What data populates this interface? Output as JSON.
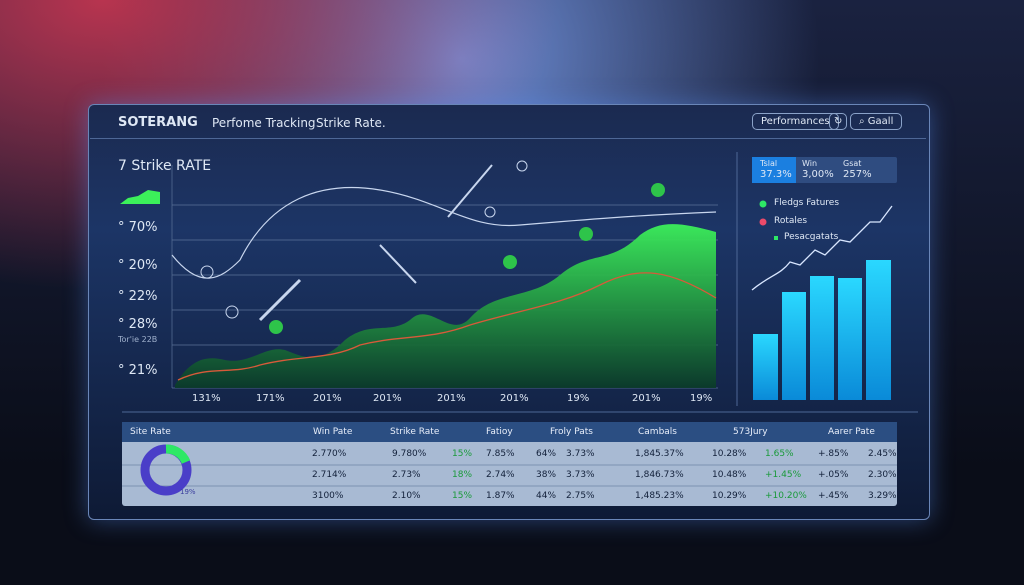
{
  "header": {
    "brand": "SOTERANG",
    "nav": [
      "Perfome Tracking",
      "Strike Rate."
    ],
    "buttons": [
      "Performances",
      "Gaall"
    ]
  },
  "chart": {
    "title": "7 Strike RATE",
    "y_labels": [
      "70%",
      "20%",
      "22%",
      "28%",
      "21%"
    ],
    "y_note": "Tor'ie 22B",
    "x_labels": [
      "131%",
      "171%",
      "201%",
      "201%",
      "201%",
      "201%",
      "19%",
      "201%",
      "19%"
    ]
  },
  "stats": {
    "headers": [
      "Tslal",
      "Win",
      "Gsat"
    ],
    "values": [
      "37.3%",
      "3,00%",
      "257%"
    ]
  },
  "legend": [
    "Fledgs Fatures",
    "Rotales",
    "Pesacgatats"
  ],
  "table": {
    "headers": [
      "Site Rate",
      "Win Pate",
      "Strike Rate",
      "Fatioy",
      "Froly Pats",
      "Cambals",
      "573Jury",
      "Aarer Pate"
    ],
    "donut_label": "19%",
    "rows": [
      [
        "2.770%",
        "9.780%",
        "15%",
        "7.85%",
        "64%",
        "3.73%",
        "1,845.37%",
        "10.28%",
        "1.65%",
        "+.85%",
        "2.45%"
      ],
      [
        "2.714%",
        "2.73%",
        "18%",
        "2.74%",
        "38%",
        "3.73%",
        "1,846.73%",
        "10.48%",
        "+1.45%",
        "+.05%",
        "2.30%"
      ],
      [
        "3100%",
        "2.10%",
        "15%",
        "1.87%",
        "44%",
        "2.75%",
        "1,485.23%",
        "10.29%",
        "+10.20%",
        "+.45%",
        "3.29%"
      ]
    ]
  }
}
